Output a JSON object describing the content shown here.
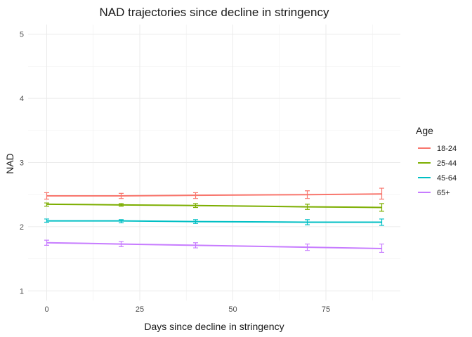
{
  "chart_data": {
    "type": "line",
    "title": "NAD trajectories since decline in stringency",
    "xlabel": "Days since decline in stringency",
    "ylabel": "NAD",
    "xlim": [
      -5,
      95
    ],
    "ylim": [
      0.85,
      5.15
    ],
    "xticks": [
      0,
      25,
      50,
      75
    ],
    "yticks": [
      1,
      2,
      3,
      4,
      5
    ],
    "grid": true,
    "legend_title": "Age",
    "legend_position": "right",
    "series": [
      {
        "name": "18-24",
        "color": "#F8766D",
        "x": [
          0,
          20,
          40,
          70,
          90
        ],
        "y": [
          2.48,
          2.48,
          2.49,
          2.5,
          2.51
        ],
        "error_bars": [
          {
            "x": 0,
            "low": 2.43,
            "high": 2.53
          },
          {
            "x": 20,
            "low": 2.44,
            "high": 2.52
          },
          {
            "x": 40,
            "low": 2.44,
            "high": 2.53
          },
          {
            "x": 70,
            "low": 2.44,
            "high": 2.56
          },
          {
            "x": 90,
            "low": 2.43,
            "high": 2.6
          }
        ]
      },
      {
        "name": "25-44",
        "color": "#7CAE00",
        "x": [
          0,
          20,
          40,
          70,
          90
        ],
        "y": [
          2.35,
          2.34,
          2.33,
          2.31,
          2.3
        ],
        "error_bars": [
          {
            "x": 0,
            "low": 2.32,
            "high": 2.37
          },
          {
            "x": 20,
            "low": 2.32,
            "high": 2.36
          },
          {
            "x": 40,
            "low": 2.3,
            "high": 2.36
          },
          {
            "x": 70,
            "low": 2.27,
            "high": 2.35
          },
          {
            "x": 90,
            "low": 2.24,
            "high": 2.36
          }
        ]
      },
      {
        "name": "45-64",
        "color": "#00BFC4",
        "x": [
          0,
          20,
          40,
          70,
          90
        ],
        "y": [
          2.09,
          2.09,
          2.08,
          2.07,
          2.07
        ],
        "error_bars": [
          {
            "x": 0,
            "low": 2.07,
            "high": 2.12
          },
          {
            "x": 20,
            "low": 2.06,
            "high": 2.11
          },
          {
            "x": 40,
            "low": 2.05,
            "high": 2.11
          },
          {
            "x": 70,
            "low": 2.03,
            "high": 2.11
          },
          {
            "x": 90,
            "low": 2.02,
            "high": 2.12
          }
        ]
      },
      {
        "name": "65+",
        "color": "#C77CFF",
        "x": [
          0,
          20,
          40,
          70,
          90
        ],
        "y": [
          1.75,
          1.73,
          1.71,
          1.68,
          1.66
        ],
        "error_bars": [
          {
            "x": 0,
            "low": 1.71,
            "high": 1.79
          },
          {
            "x": 20,
            "low": 1.69,
            "high": 1.77
          },
          {
            "x": 40,
            "low": 1.67,
            "high": 1.75
          },
          {
            "x": 70,
            "low": 1.63,
            "high": 1.73
          },
          {
            "x": 90,
            "low": 1.6,
            "high": 1.73
          }
        ]
      }
    ]
  }
}
